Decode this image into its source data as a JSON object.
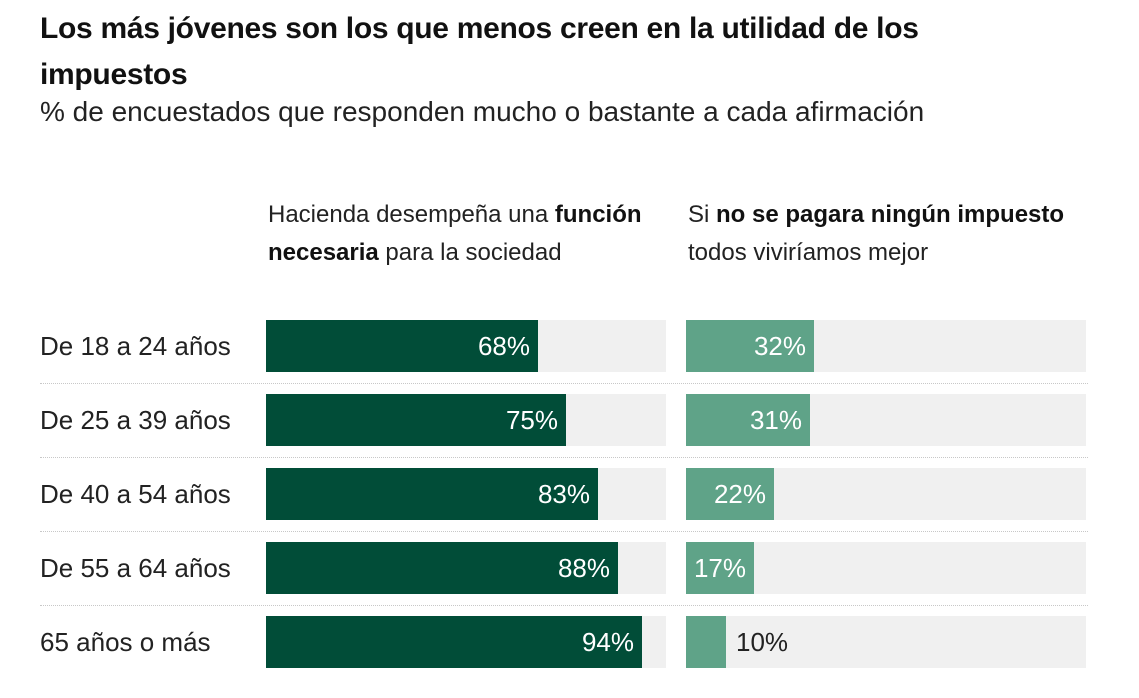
{
  "title": "Los más jóvenes son los que menos creen en la utilidad de los impuestos",
  "subtitle": "% de encuestados que responden mucho o bastante a cada afirmación",
  "columns": [
    {
      "parts": [
        {
          "text": "Hacienda desempeña una ",
          "bold": false
        },
        {
          "text": "función necesaria",
          "bold": true
        },
        {
          "text": " para la sociedad",
          "bold": false
        }
      ]
    },
    {
      "parts": [
        {
          "text": "Si ",
          "bold": false
        },
        {
          "text": "no se pagara ningún impuesto",
          "bold": true
        },
        {
          "text": " todos viviríamos mejor",
          "bold": false
        }
      ]
    }
  ],
  "colors": {
    "series1": "#014d38",
    "series2": "#5fa388",
    "track": "#f0f0f0"
  },
  "chart_data": {
    "type": "bar",
    "orientation": "horizontal",
    "categories": [
      "De 18 a 24 años",
      "De 25 a 39 años",
      "De 40 a 54 años",
      "De 55 a 64 años",
      "65 años o más"
    ],
    "series": [
      {
        "values": [
          68,
          75,
          83,
          88,
          94
        ],
        "labels": [
          "68%",
          "75%",
          "83%",
          "88%",
          "94%"
        ]
      },
      {
        "values": [
          32,
          31,
          22,
          17,
          10
        ],
        "labels": [
          "32%",
          "31%",
          "22%",
          "17%",
          "10%"
        ]
      }
    ],
    "xlim": [
      0,
      100
    ],
    "grid": false
  }
}
